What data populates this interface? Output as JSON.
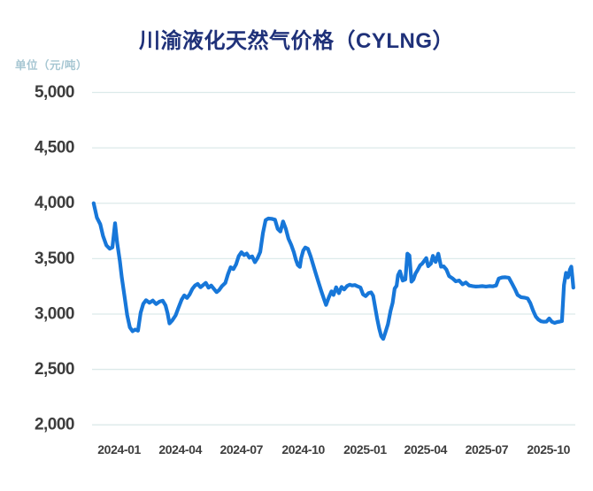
{
  "header": {
    "title": "川渝液化天然气价格（CYLNG）",
    "unit_label": "单位（元/吨）"
  },
  "colors": {
    "background": "#ffffff",
    "line": "#1777d9",
    "title": "#1f3179",
    "unit_label": "#a6c6d2",
    "grid": "#dceaea",
    "tick_label": "#3d3d3d"
  },
  "chart_data": {
    "type": "line",
    "title": "川渝液化天然气价格（CYLNG）",
    "ylabel": "单位（元/吨）",
    "ylim": [
      2000,
      5000
    ],
    "y_ticks": [
      5000,
      4500,
      4000,
      3500,
      3000,
      2500,
      2000
    ],
    "y_tick_labels": [
      "5,000",
      "4,500",
      "4,000",
      "3,500",
      "3,000",
      "2,500",
      "2,000"
    ],
    "x_tick_labels": [
      "2024-01",
      "2024-04",
      "2024-07",
      "2024-10",
      "2025-01",
      "2025-04",
      "2025-07",
      "2025-10"
    ],
    "grid": "horizontal",
    "legend": "none",
    "points": [
      [
        "2023-11-24",
        4000
      ],
      [
        "2023-11-29",
        3870
      ],
      [
        "2023-12-04",
        3810
      ],
      [
        "2023-12-08",
        3705
      ],
      [
        "2023-12-13",
        3620
      ],
      [
        "2023-12-18",
        3590
      ],
      [
        "2023-12-22",
        3602
      ],
      [
        "2023-12-26",
        3820
      ],
      [
        "2023-12-29",
        3648
      ],
      [
        "2024-01-02",
        3480
      ],
      [
        "2024-01-05",
        3330
      ],
      [
        "2024-01-09",
        3160
      ],
      [
        "2024-01-13",
        2990
      ],
      [
        "2024-01-17",
        2880
      ],
      [
        "2024-01-21",
        2845
      ],
      [
        "2024-01-25",
        2860
      ],
      [
        "2024-01-29",
        2850
      ],
      [
        "2024-02-02",
        3012
      ],
      [
        "2024-02-06",
        3092
      ],
      [
        "2024-02-10",
        3125
      ],
      [
        "2024-02-15",
        3102
      ],
      [
        "2024-02-20",
        3122
      ],
      [
        "2024-02-25",
        3090
      ],
      [
        "2024-03-01",
        3112
      ],
      [
        "2024-03-06",
        3120
      ],
      [
        "2024-03-10",
        3078
      ],
      [
        "2024-03-13",
        3008
      ],
      [
        "2024-03-16",
        2915
      ],
      [
        "2024-03-20",
        2942
      ],
      [
        "2024-03-25",
        2988
      ],
      [
        "2024-03-29",
        3052
      ],
      [
        "2024-04-03",
        3130
      ],
      [
        "2024-04-07",
        3168
      ],
      [
        "2024-04-11",
        3145
      ],
      [
        "2024-04-15",
        3178
      ],
      [
        "2024-04-19",
        3228
      ],
      [
        "2024-04-23",
        3258
      ],
      [
        "2024-04-27",
        3272
      ],
      [
        "2024-05-01",
        3242
      ],
      [
        "2024-05-05",
        3262
      ],
      [
        "2024-05-09",
        3282
      ],
      [
        "2024-05-13",
        3238
      ],
      [
        "2024-05-17",
        3258
      ],
      [
        "2024-05-21",
        3228
      ],
      [
        "2024-05-25",
        3198
      ],
      [
        "2024-05-29",
        3218
      ],
      [
        "2024-06-02",
        3252
      ],
      [
        "2024-06-07",
        3282
      ],
      [
        "2024-06-11",
        3360
      ],
      [
        "2024-06-15",
        3422
      ],
      [
        "2024-06-19",
        3405
      ],
      [
        "2024-06-23",
        3448
      ],
      [
        "2024-06-27",
        3522
      ],
      [
        "2024-07-01",
        3558
      ],
      [
        "2024-07-05",
        3532
      ],
      [
        "2024-07-09",
        3546
      ],
      [
        "2024-07-13",
        3508
      ],
      [
        "2024-07-17",
        3520
      ],
      [
        "2024-07-21",
        3468
      ],
      [
        "2024-07-25",
        3505
      ],
      [
        "2024-07-29",
        3560
      ],
      [
        "2024-08-02",
        3732
      ],
      [
        "2024-08-06",
        3848
      ],
      [
        "2024-08-10",
        3862
      ],
      [
        "2024-08-15",
        3860
      ],
      [
        "2024-08-20",
        3852
      ],
      [
        "2024-08-24",
        3768
      ],
      [
        "2024-08-28",
        3745
      ],
      [
        "2024-09-01",
        3836
      ],
      [
        "2024-09-05",
        3770
      ],
      [
        "2024-09-09",
        3680
      ],
      [
        "2024-09-13",
        3625
      ],
      [
        "2024-09-17",
        3558
      ],
      [
        "2024-09-20",
        3490
      ],
      [
        "2024-09-23",
        3442
      ],
      [
        "2024-09-26",
        3425
      ],
      [
        "2024-09-28",
        3505
      ],
      [
        "2024-10-01",
        3572
      ],
      [
        "2024-10-04",
        3600
      ],
      [
        "2024-10-08",
        3588
      ],
      [
        "2024-10-12",
        3520
      ],
      [
        "2024-10-16",
        3440
      ],
      [
        "2024-10-20",
        3360
      ],
      [
        "2024-10-24",
        3280
      ],
      [
        "2024-10-28",
        3205
      ],
      [
        "2024-11-01",
        3132
      ],
      [
        "2024-11-04",
        3082
      ],
      [
        "2024-11-08",
        3150
      ],
      [
        "2024-11-12",
        3205
      ],
      [
        "2024-11-15",
        3172
      ],
      [
        "2024-11-19",
        3242
      ],
      [
        "2024-11-23",
        3188
      ],
      [
        "2024-11-27",
        3245
      ],
      [
        "2024-12-01",
        3222
      ],
      [
        "2024-12-05",
        3252
      ],
      [
        "2024-12-09",
        3265
      ],
      [
        "2024-12-13",
        3258
      ],
      [
        "2024-12-17",
        3262
      ],
      [
        "2024-12-21",
        3250
      ],
      [
        "2024-12-25",
        3240
      ],
      [
        "2024-12-29",
        3178
      ],
      [
        "2025-01-02",
        3162
      ],
      [
        "2025-01-06",
        3188
      ],
      [
        "2025-01-10",
        3195
      ],
      [
        "2025-01-13",
        3165
      ],
      [
        "2025-01-16",
        3060
      ],
      [
        "2025-01-19",
        2960
      ],
      [
        "2025-01-22",
        2870
      ],
      [
        "2025-01-25",
        2800
      ],
      [
        "2025-01-28",
        2775
      ],
      [
        "2025-01-31",
        2828
      ],
      [
        "2025-02-04",
        2908
      ],
      [
        "2025-02-08",
        3030
      ],
      [
        "2025-02-11",
        3100
      ],
      [
        "2025-02-14",
        3230
      ],
      [
        "2025-02-17",
        3255
      ],
      [
        "2025-02-19",
        3350
      ],
      [
        "2025-02-22",
        3386
      ],
      [
        "2025-02-26",
        3302
      ],
      [
        "2025-03-02",
        3312
      ],
      [
        "2025-03-05",
        3545
      ],
      [
        "2025-03-08",
        3528
      ],
      [
        "2025-03-11",
        3292
      ],
      [
        "2025-03-14",
        3312
      ],
      [
        "2025-03-17",
        3365
      ],
      [
        "2025-03-20",
        3395
      ],
      [
        "2025-03-24",
        3440
      ],
      [
        "2025-03-27",
        3455
      ],
      [
        "2025-03-30",
        3480
      ],
      [
        "2025-04-02",
        3505
      ],
      [
        "2025-04-05",
        3432
      ],
      [
        "2025-04-09",
        3455
      ],
      [
        "2025-04-12",
        3525
      ],
      [
        "2025-04-16",
        3470
      ],
      [
        "2025-04-20",
        3545
      ],
      [
        "2025-04-24",
        3428
      ],
      [
        "2025-04-28",
        3430
      ],
      [
        "2025-05-02",
        3402
      ],
      [
        "2025-05-06",
        3342
      ],
      [
        "2025-05-11",
        3322
      ],
      [
        "2025-05-16",
        3295
      ],
      [
        "2025-05-21",
        3302
      ],
      [
        "2025-05-26",
        3268
      ],
      [
        "2025-05-31",
        3285
      ],
      [
        "2025-06-05",
        3258
      ],
      [
        "2025-06-10",
        3252
      ],
      [
        "2025-06-15",
        3248
      ],
      [
        "2025-06-20",
        3250
      ],
      [
        "2025-06-25",
        3252
      ],
      [
        "2025-06-30",
        3248
      ],
      [
        "2025-07-05",
        3252
      ],
      [
        "2025-07-10",
        3250
      ],
      [
        "2025-07-15",
        3258
      ],
      [
        "2025-07-19",
        3320
      ],
      [
        "2025-07-24",
        3330
      ],
      [
        "2025-07-29",
        3332
      ],
      [
        "2025-08-03",
        3328
      ],
      [
        "2025-08-08",
        3272
      ],
      [
        "2025-08-12",
        3225
      ],
      [
        "2025-08-16",
        3172
      ],
      [
        "2025-08-21",
        3152
      ],
      [
        "2025-08-26",
        3148
      ],
      [
        "2025-08-31",
        3140
      ],
      [
        "2025-09-04",
        3098
      ],
      [
        "2025-09-08",
        3032
      ],
      [
        "2025-09-12",
        2978
      ],
      [
        "2025-09-16",
        2950
      ],
      [
        "2025-09-20",
        2934
      ],
      [
        "2025-09-24",
        2930
      ],
      [
        "2025-09-28",
        2932
      ],
      [
        "2025-10-02",
        2960
      ],
      [
        "2025-10-06",
        2930
      ],
      [
        "2025-10-10",
        2920
      ],
      [
        "2025-10-14",
        2928
      ],
      [
        "2025-10-18",
        2932
      ],
      [
        "2025-10-21",
        2936
      ],
      [
        "2025-10-24",
        3262
      ],
      [
        "2025-10-27",
        3372
      ],
      [
        "2025-10-30",
        3330
      ],
      [
        "2025-11-02",
        3402
      ],
      [
        "2025-11-04",
        3428
      ],
      [
        "2025-11-06",
        3300
      ],
      [
        "2025-11-07",
        3238
      ]
    ]
  }
}
